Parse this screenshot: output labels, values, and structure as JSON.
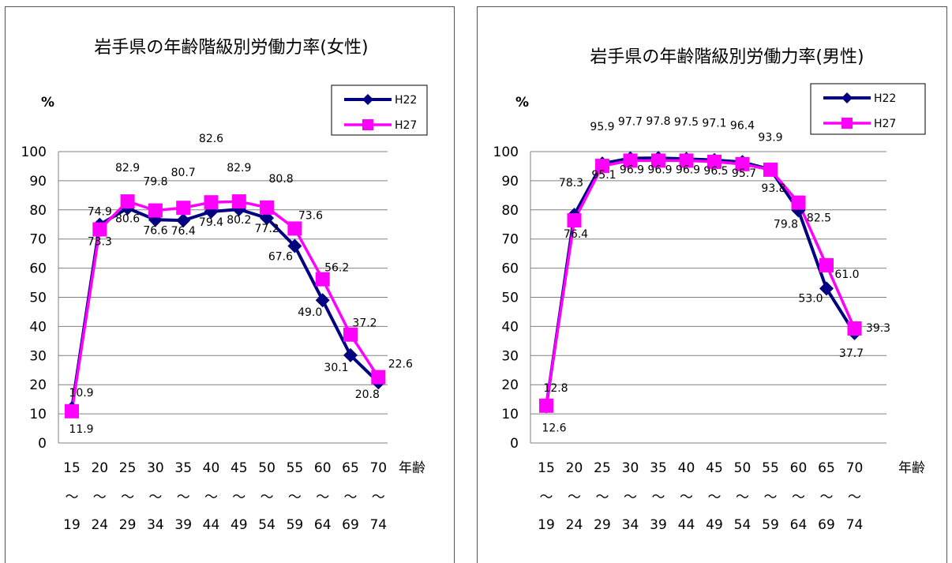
{
  "chart_data": [
    {
      "type": "line",
      "title": "岩手県の年齢階級別労働力率(女性)",
      "ylabel": "%",
      "xlabel": "年齢",
      "ylim": [
        0,
        100
      ],
      "yticks": [
        "0",
        "10",
        "20",
        "30",
        "40",
        "50",
        "60",
        "70",
        "80",
        "90",
        "100"
      ],
      "categories": [
        [
          "15",
          "～",
          "19"
        ],
        [
          "20",
          "～",
          "24"
        ],
        [
          "25",
          "～",
          "29"
        ],
        [
          "30",
          "～",
          "34"
        ],
        [
          "35",
          "～",
          "39"
        ],
        [
          "40",
          "～",
          "44"
        ],
        [
          "45",
          "～",
          "49"
        ],
        [
          "50",
          "～",
          "54"
        ],
        [
          "55",
          "～",
          "59"
        ],
        [
          "60",
          "～",
          "64"
        ],
        [
          "65",
          "～",
          "69"
        ],
        [
          "70",
          "～",
          "74"
        ]
      ],
      "grid": true,
      "legend": "top-right",
      "series": [
        {
          "name": "H22",
          "color": "#000080",
          "marker": "diamond",
          "values": [
            11.9,
            74.9,
            80.6,
            76.6,
            76.4,
            79.4,
            80.2,
            77.2,
            67.6,
            49.0,
            30.1,
            20.8
          ],
          "labels": [
            "11.9",
            "74.9",
            "80.6",
            "76.6",
            "76.4",
            "79.4",
            "80.2",
            "77.2",
            "67.6",
            "49.0",
            "30.1",
            "20.8"
          ]
        },
        {
          "name": "H27",
          "color": "#ff00ff",
          "marker": "square",
          "values": [
            10.9,
            73.3,
            82.9,
            79.8,
            80.7,
            82.6,
            82.9,
            80.8,
            73.6,
            56.2,
            37.2,
            22.6
          ],
          "labels": [
            "10.9",
            "73.3",
            "82.9",
            "79.8",
            "80.7",
            "82.6",
            "82.9",
            "80.8",
            "73.6",
            "56.2",
            "37.2",
            "22.6"
          ]
        }
      ]
    },
    {
      "type": "line",
      "title": "岩手県の年齢階級別労働力率(男性)",
      "ylabel": "%",
      "xlabel": "年齢",
      "ylim": [
        0,
        100
      ],
      "yticks": [
        "0",
        "10",
        "20",
        "30",
        "40",
        "50",
        "60",
        "70",
        "80",
        "90",
        "100"
      ],
      "categories": [
        [
          "15",
          "～",
          "19"
        ],
        [
          "20",
          "～",
          "24"
        ],
        [
          "25",
          "～",
          "29"
        ],
        [
          "30",
          "～",
          "34"
        ],
        [
          "35",
          "～",
          "39"
        ],
        [
          "40",
          "～",
          "44"
        ],
        [
          "45",
          "～",
          "49"
        ],
        [
          "50",
          "～",
          "54"
        ],
        [
          "55",
          "～",
          "59"
        ],
        [
          "60",
          "～",
          "64"
        ],
        [
          "65",
          "～",
          "69"
        ],
        [
          "70",
          "～",
          "74"
        ]
      ],
      "grid": true,
      "legend": "top-right",
      "series": [
        {
          "name": "H22",
          "color": "#000080",
          "marker": "diamond",
          "values": [
            12.6,
            78.3,
            95.9,
            97.7,
            97.8,
            97.5,
            97.1,
            96.4,
            93.9,
            79.8,
            53.0,
            37.7
          ],
          "labels": [
            "12.6",
            "78.3",
            "95.9",
            "97.7",
            "97.8",
            "97.5",
            "97.1",
            "96.4",
            "93.9",
            "79.8",
            "53.0",
            "37.7"
          ]
        },
        {
          "name": "H27",
          "color": "#ff00ff",
          "marker": "square",
          "values": [
            12.8,
            76.4,
            95.1,
            96.9,
            96.9,
            96.9,
            96.5,
            95.7,
            93.8,
            82.5,
            61.0,
            39.3
          ],
          "labels": [
            "12.8",
            "76.4",
            "95.1",
            "96.9",
            "96.9",
            "96.9",
            "96.5",
            "95.7",
            "93.8",
            "82.5",
            "61.0",
            "39.3"
          ]
        }
      ]
    }
  ]
}
